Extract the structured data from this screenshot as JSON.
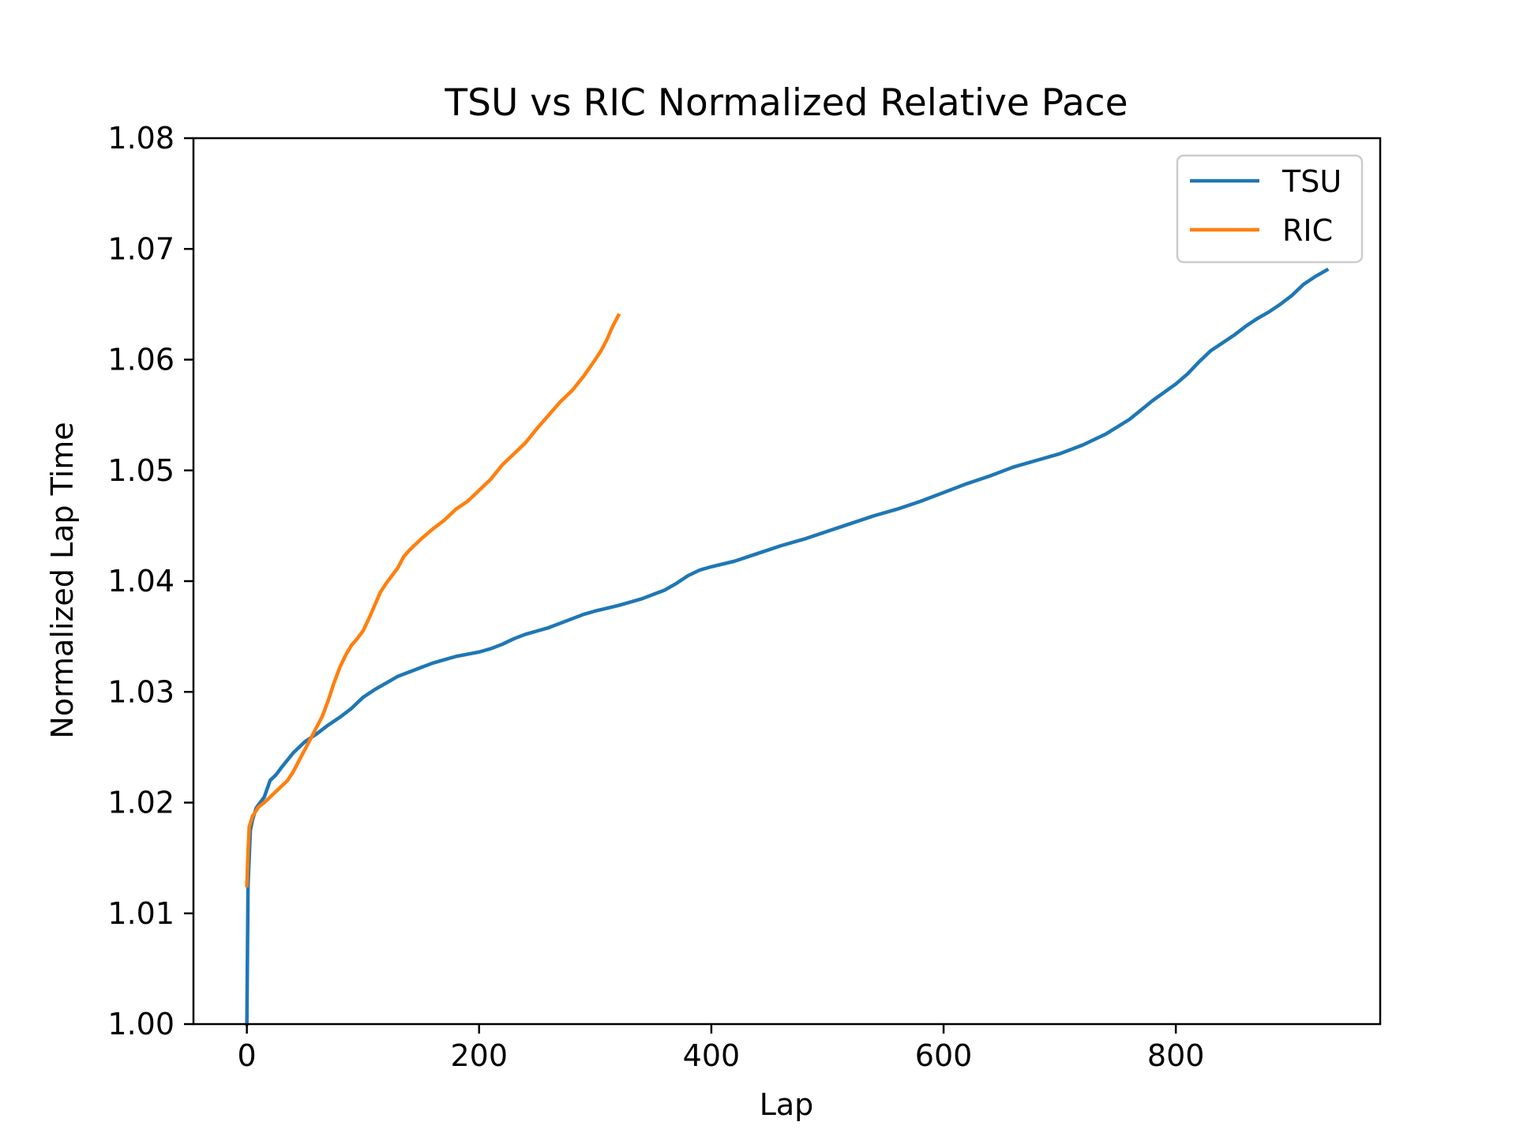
{
  "chart_data": {
    "type": "line",
    "title": "TSU vs RIC Normalized Relative Pace",
    "xlabel": "Lap",
    "ylabel": "Normalized Lap Time",
    "xlim": [
      -46,
      976
    ],
    "ylim": [
      1.0,
      1.08
    ],
    "xticks": [
      0,
      200,
      400,
      600,
      800
    ],
    "xtick_labels": [
      "0",
      "200",
      "400",
      "600",
      "800"
    ],
    "yticks": [
      1.0,
      1.01,
      1.02,
      1.03,
      1.04,
      1.05,
      1.06,
      1.07,
      1.08
    ],
    "ytick_labels": [
      "1.00",
      "1.01",
      "1.02",
      "1.03",
      "1.04",
      "1.05",
      "1.06",
      "1.07",
      "1.08"
    ],
    "grid": false,
    "legend_position": "top-right",
    "series": [
      {
        "name": "TSU",
        "color": "#1f77b4",
        "x": [
          0,
          1,
          2,
          3,
          5,
          8,
          10,
          15,
          20,
          25,
          30,
          40,
          50,
          60,
          70,
          80,
          90,
          100,
          110,
          120,
          130,
          140,
          150,
          160,
          170,
          180,
          190,
          200,
          210,
          220,
          230,
          240,
          250,
          260,
          270,
          280,
          290,
          300,
          320,
          340,
          360,
          370,
          380,
          390,
          400,
          420,
          440,
          460,
          480,
          500,
          520,
          540,
          560,
          580,
          600,
          620,
          640,
          660,
          680,
          700,
          720,
          740,
          760,
          780,
          800,
          810,
          820,
          830,
          840,
          850,
          860,
          870,
          880,
          890,
          900,
          910,
          920,
          930
        ],
        "y": [
          1.0,
          1.0125,
          1.015,
          1.0175,
          1.0185,
          1.0195,
          1.0198,
          1.0205,
          1.022,
          1.0225,
          1.0232,
          1.0245,
          1.0255,
          1.0262,
          1.027,
          1.0277,
          1.0285,
          1.0295,
          1.0302,
          1.0308,
          1.0314,
          1.0318,
          1.0322,
          1.0326,
          1.0329,
          1.0332,
          1.0334,
          1.0336,
          1.0339,
          1.0343,
          1.0348,
          1.0352,
          1.0355,
          1.0358,
          1.0362,
          1.0366,
          1.037,
          1.0373,
          1.0378,
          1.0384,
          1.0392,
          1.0398,
          1.0405,
          1.041,
          1.0413,
          1.0418,
          1.0425,
          1.0432,
          1.0438,
          1.0445,
          1.0452,
          1.0459,
          1.0465,
          1.0472,
          1.048,
          1.0488,
          1.0495,
          1.0503,
          1.0509,
          1.0515,
          1.0523,
          1.0533,
          1.0546,
          1.0563,
          1.0578,
          1.0587,
          1.0598,
          1.0608,
          1.0615,
          1.0622,
          1.063,
          1.0637,
          1.0643,
          1.065,
          1.0658,
          1.0668,
          1.0675,
          1.0681
        ]
      },
      {
        "name": "RIC",
        "color": "#ff7f0e",
        "x": [
          0,
          1,
          2,
          5,
          10,
          15,
          20,
          25,
          30,
          35,
          40,
          45,
          50,
          55,
          60,
          65,
          70,
          75,
          80,
          85,
          90,
          95,
          100,
          105,
          110,
          115,
          120,
          125,
          130,
          135,
          140,
          150,
          160,
          170,
          180,
          190,
          200,
          210,
          220,
          230,
          240,
          250,
          260,
          270,
          280,
          290,
          300,
          305,
          310,
          315,
          320
        ],
        "y": [
          1.0125,
          1.0155,
          1.0178,
          1.0188,
          1.0196,
          1.02,
          1.0205,
          1.021,
          1.0215,
          1.022,
          1.0228,
          1.0238,
          1.0248,
          1.0258,
          1.0268,
          1.0278,
          1.0292,
          1.0308,
          1.0322,
          1.0333,
          1.0342,
          1.0348,
          1.0355,
          1.0366,
          1.0378,
          1.039,
          1.0398,
          1.0405,
          1.0412,
          1.0422,
          1.0428,
          1.0438,
          1.0447,
          1.0455,
          1.0465,
          1.0472,
          1.0482,
          1.0492,
          1.0505,
          1.0515,
          1.0525,
          1.0538,
          1.055,
          1.0562,
          1.0572,
          1.0585,
          1.06,
          1.0608,
          1.0618,
          1.063,
          1.064
        ]
      }
    ]
  }
}
